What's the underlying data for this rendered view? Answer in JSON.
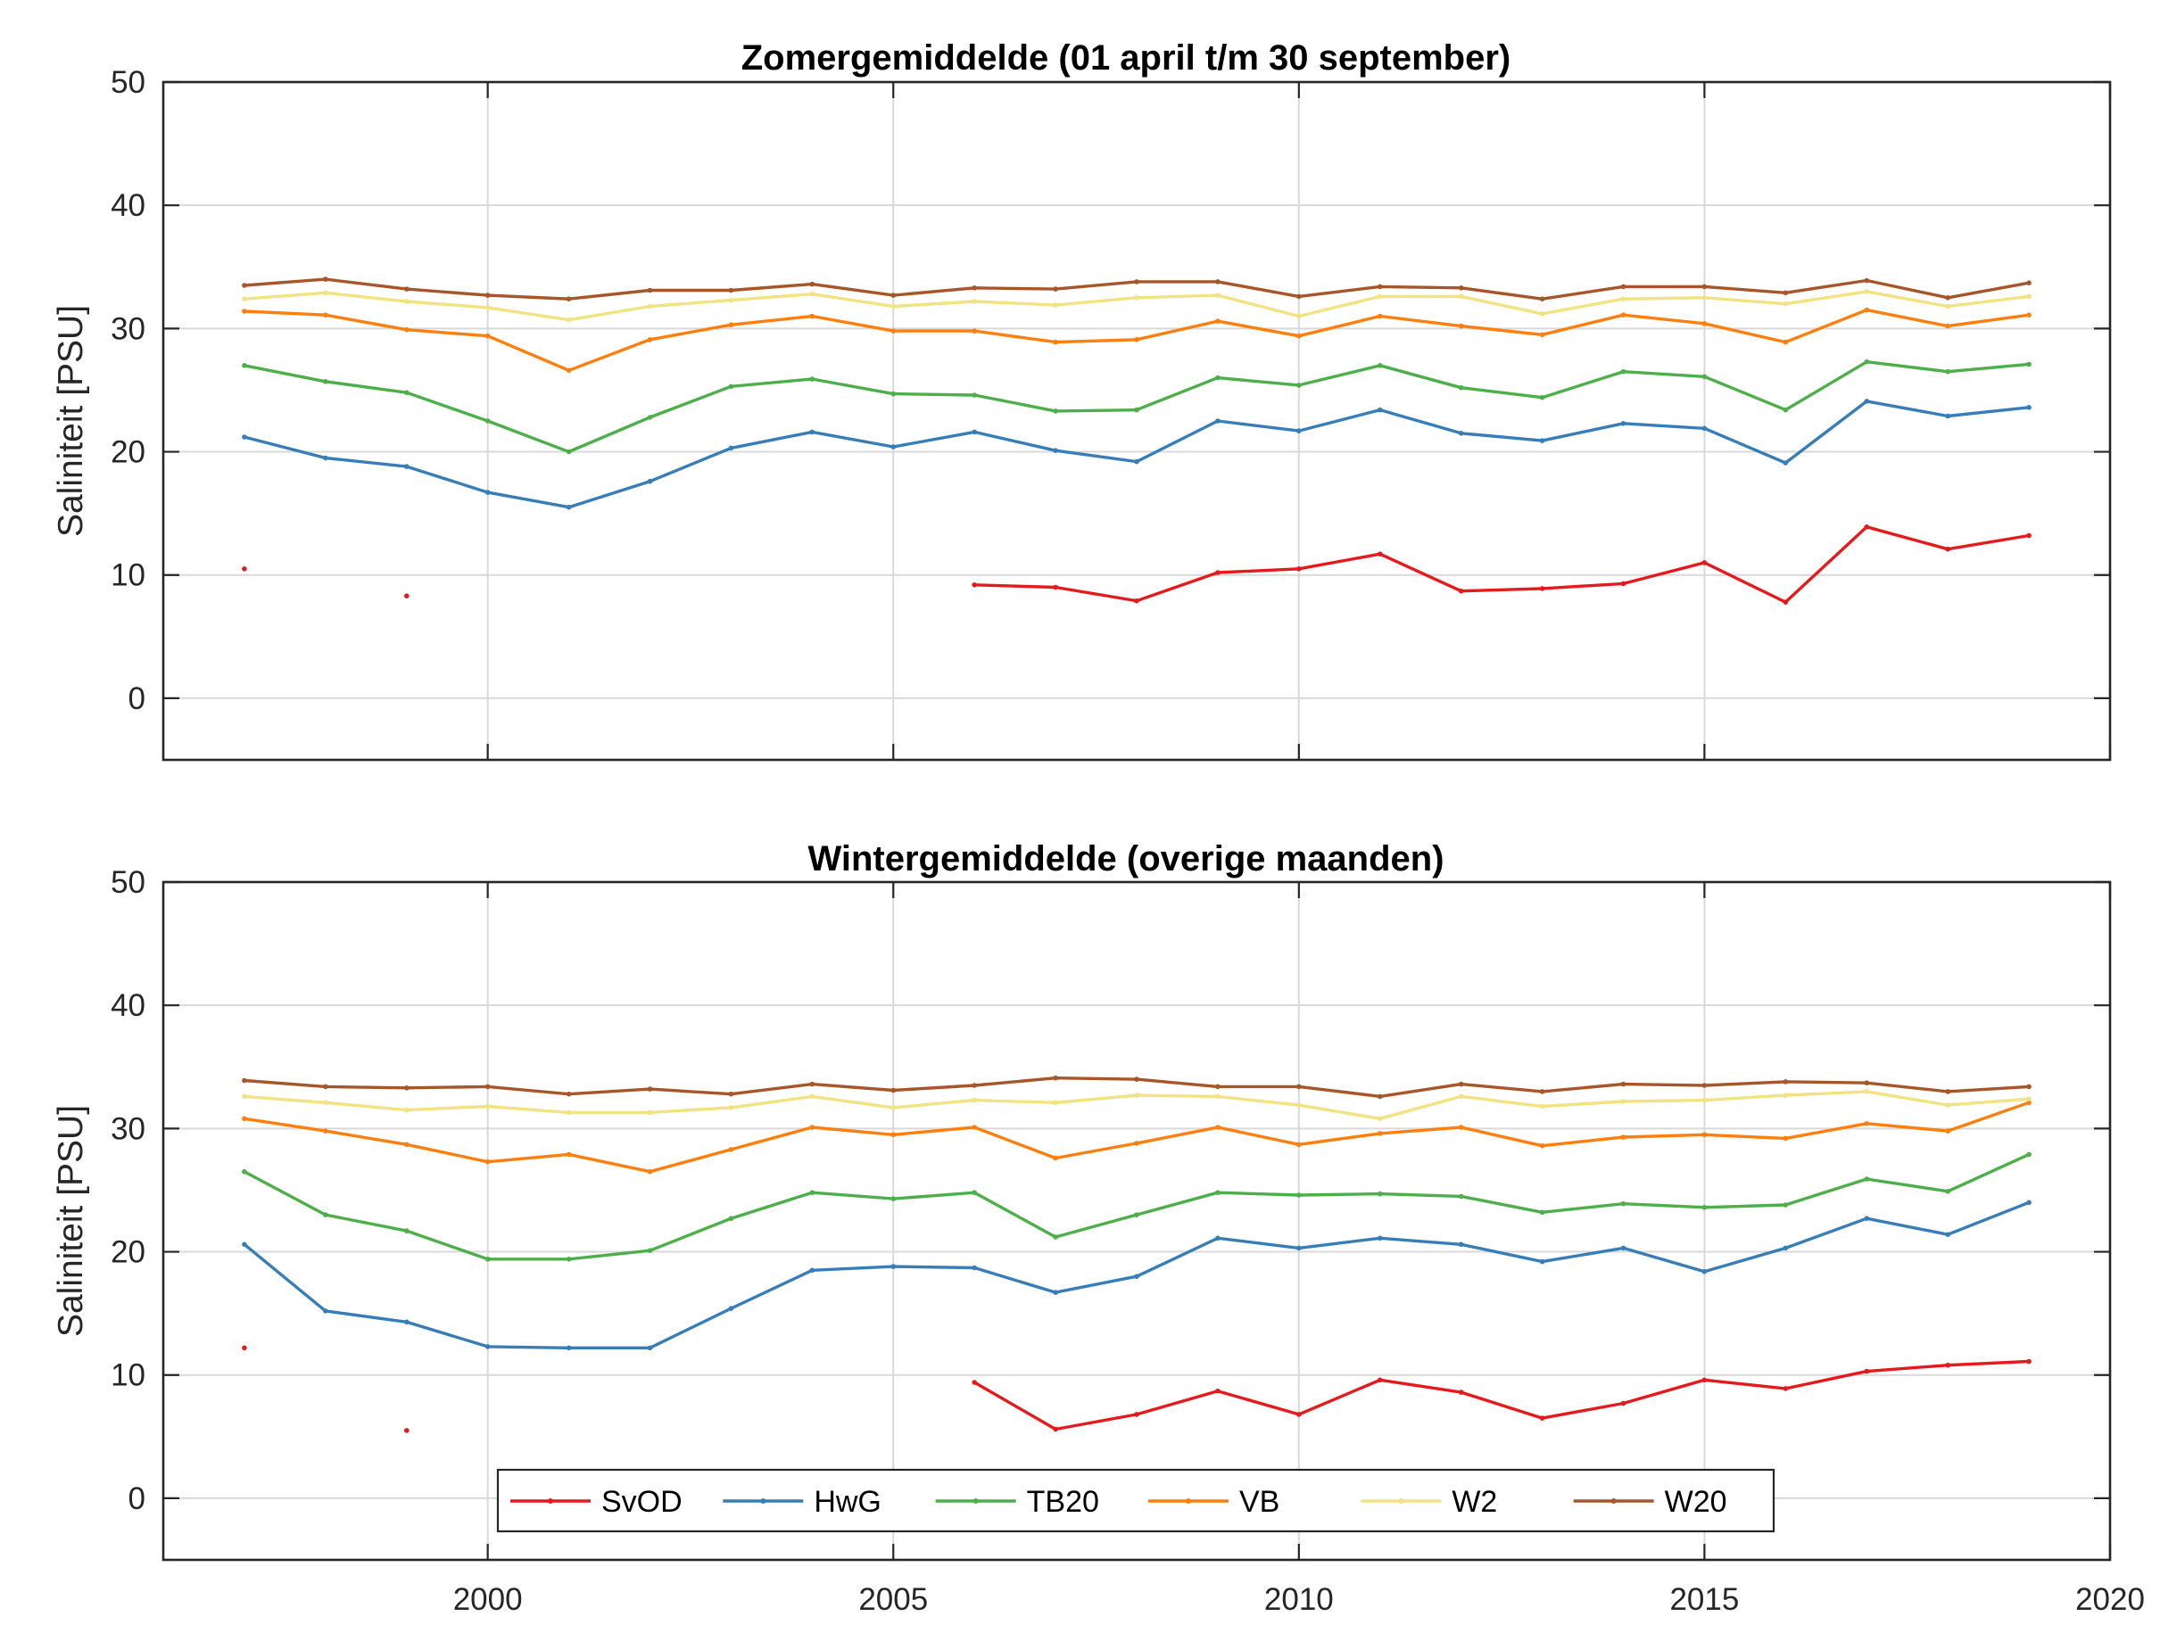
{
  "chart_data": [
    {
      "type": "line",
      "title": "Zomergemiddelde (01 april t/m 30 september)",
      "ylabel": "Saliniteit [PSU]",
      "xlabel": "",
      "xlim": [
        1996,
        2020
      ],
      "ylim": [
        -5,
        50
      ],
      "xticks": [
        2000,
        2005,
        2010,
        2015,
        2020
      ],
      "yticks": [
        0,
        10,
        20,
        30,
        40,
        50
      ],
      "grid": true,
      "legend": false,
      "x": [
        1997,
        1998,
        1999,
        2000,
        2001,
        2002,
        2003,
        2004,
        2005,
        2006,
        2007,
        2008,
        2009,
        2010,
        2011,
        2012,
        2013,
        2014,
        2015,
        2016,
        2017,
        2018,
        2019
      ],
      "series": [
        {
          "name": "SvOD",
          "color": "#e41a1c",
          "values": [
            10.5,
            null,
            8.3,
            null,
            null,
            null,
            null,
            null,
            null,
            9.2,
            9.0,
            7.9,
            10.2,
            10.5,
            11.7,
            8.7,
            8.9,
            9.3,
            11.0,
            7.8,
            13.9,
            12.1,
            13.2
          ]
        },
        {
          "name": "HwG",
          "color": "#377eb8",
          "values": [
            21.2,
            19.5,
            18.8,
            16.7,
            15.5,
            17.6,
            20.3,
            21.6,
            20.4,
            21.6,
            20.1,
            19.2,
            22.5,
            21.7,
            23.4,
            21.5,
            20.9,
            22.3,
            21.9,
            19.1,
            24.1,
            22.9,
            23.6
          ]
        },
        {
          "name": "TB20",
          "color": "#4daf4a",
          "values": [
            27.0,
            25.7,
            24.8,
            22.5,
            20.0,
            22.8,
            25.3,
            25.9,
            24.7,
            24.6,
            23.3,
            23.4,
            26.0,
            25.4,
            27.0,
            25.2,
            24.4,
            26.5,
            26.1,
            23.4,
            27.3,
            26.5,
            27.1
          ]
        },
        {
          "name": "VB",
          "color": "#ff7f0e",
          "values": [
            31.4,
            31.1,
            29.9,
            29.4,
            26.6,
            29.1,
            30.3,
            31.0,
            29.8,
            29.8,
            28.9,
            29.1,
            30.6,
            29.4,
            31.0,
            30.2,
            29.5,
            31.1,
            30.4,
            28.9,
            31.5,
            30.2,
            31.1
          ]
        },
        {
          "name": "W2",
          "color": "#f2e381",
          "values": [
            32.4,
            32.9,
            32.2,
            31.7,
            30.7,
            31.8,
            32.3,
            32.8,
            31.8,
            32.2,
            31.9,
            32.5,
            32.7,
            31.0,
            32.6,
            32.6,
            31.2,
            32.4,
            32.5,
            32.0,
            33.0,
            31.8,
            32.6
          ]
        },
        {
          "name": "W20",
          "color": "#a65628",
          "values": [
            33.5,
            34.0,
            33.2,
            32.7,
            32.4,
            33.1,
            33.1,
            33.6,
            32.7,
            33.3,
            33.2,
            33.8,
            33.8,
            32.6,
            33.4,
            33.3,
            32.4,
            33.4,
            33.4,
            32.9,
            33.9,
            32.5,
            33.7
          ]
        }
      ]
    },
    {
      "type": "line",
      "title": "Wintergemiddelde (overige maanden)",
      "ylabel": "Saliniteit [PSU]",
      "xlabel": "",
      "xlim": [
        1996,
        2020
      ],
      "ylim": [
        -5,
        50
      ],
      "xticks": [
        2000,
        2005,
        2010,
        2015,
        2020
      ],
      "yticks": [
        0,
        10,
        20,
        30,
        40,
        50
      ],
      "grid": true,
      "legend": "bottom-center",
      "x": [
        1997,
        1998,
        1999,
        2000,
        2001,
        2002,
        2003,
        2004,
        2005,
        2006,
        2007,
        2008,
        2009,
        2010,
        2011,
        2012,
        2013,
        2014,
        2015,
        2016,
        2017,
        2018,
        2019
      ],
      "series": [
        {
          "name": "SvOD",
          "color": "#e41a1c",
          "values": [
            12.2,
            null,
            5.5,
            null,
            null,
            null,
            null,
            null,
            null,
            9.4,
            5.6,
            6.8,
            8.7,
            6.8,
            9.6,
            8.6,
            6.5,
            7.7,
            9.6,
            8.9,
            10.3,
            10.8,
            11.1
          ]
        },
        {
          "name": "HwG",
          "color": "#377eb8",
          "values": [
            20.6,
            15.2,
            14.3,
            12.3,
            12.2,
            12.2,
            15.4,
            18.5,
            18.8,
            18.7,
            16.7,
            18.0,
            21.1,
            20.3,
            21.1,
            20.6,
            19.2,
            20.3,
            18.4,
            20.3,
            22.7,
            21.4,
            24.0
          ]
        },
        {
          "name": "TB20",
          "color": "#4daf4a",
          "values": [
            26.5,
            23.0,
            21.7,
            19.4,
            19.4,
            20.1,
            22.7,
            24.8,
            24.3,
            24.8,
            21.2,
            23.0,
            24.8,
            24.6,
            24.7,
            24.5,
            23.2,
            23.9,
            23.6,
            23.8,
            25.9,
            24.9,
            27.9
          ]
        },
        {
          "name": "VB",
          "color": "#ff7f0e",
          "values": [
            30.8,
            29.8,
            28.7,
            27.3,
            27.9,
            26.5,
            28.3,
            30.1,
            29.5,
            30.1,
            27.6,
            28.8,
            30.1,
            28.7,
            29.6,
            30.1,
            28.6,
            29.3,
            29.5,
            29.2,
            30.4,
            29.8,
            32.1
          ]
        },
        {
          "name": "W2",
          "color": "#f2e381",
          "values": [
            32.6,
            32.1,
            31.5,
            31.8,
            31.3,
            31.3,
            31.7,
            32.6,
            31.7,
            32.3,
            32.1,
            32.7,
            32.6,
            31.9,
            30.8,
            32.6,
            31.8,
            32.2,
            32.3,
            32.7,
            33.0,
            31.9,
            32.4
          ]
        },
        {
          "name": "W20",
          "color": "#a65628",
          "values": [
            33.9,
            33.4,
            33.3,
            33.4,
            32.8,
            33.2,
            32.8,
            33.6,
            33.1,
            33.5,
            34.1,
            34.0,
            33.4,
            33.4,
            32.6,
            33.6,
            33.0,
            33.6,
            33.5,
            33.8,
            33.7,
            33.0,
            33.4
          ]
        }
      ]
    }
  ]
}
